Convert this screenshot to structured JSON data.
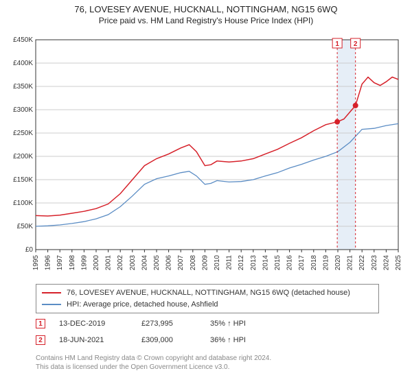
{
  "title": {
    "line1": "76, LOVESEY AVENUE, HUCKNALL, NOTTINGHAM, NG15 6WQ",
    "line2": "Price paid vs. HM Land Registry's House Price Index (HPI)"
  },
  "chart": {
    "type": "line",
    "background_color": "#ffffff",
    "plot_border_color": "#333333",
    "grid_color": "#cccccc",
    "x_years": [
      1995,
      1996,
      1997,
      1998,
      1999,
      2000,
      2001,
      2002,
      2003,
      2004,
      2005,
      2006,
      2007,
      2008,
      2009,
      2010,
      2011,
      2012,
      2013,
      2014,
      2015,
      2016,
      2017,
      2018,
      2019,
      2020,
      2021,
      2022,
      2023,
      2024,
      2025
    ],
    "y_ticks": [
      0,
      50000,
      100000,
      150000,
      200000,
      250000,
      300000,
      350000,
      400000,
      450000
    ],
    "y_tick_labels": [
      "£0",
      "£50K",
      "£100K",
      "£150K",
      "£200K",
      "£250K",
      "£300K",
      "£350K",
      "£400K",
      "£450K"
    ],
    "ylim": [
      0,
      450000
    ],
    "xlim": [
      1995,
      2025
    ],
    "series": [
      {
        "name": "76, LOVESEY AVENUE, HUCKNALL, NOTTINGHAM, NG15 6WQ (detached house)",
        "color": "#d62029",
        "line_width": 1.5,
        "data": [
          [
            1995,
            73000
          ],
          [
            1996,
            72000
          ],
          [
            1997,
            74000
          ],
          [
            1998,
            78000
          ],
          [
            1999,
            82000
          ],
          [
            2000,
            88000
          ],
          [
            2001,
            98000
          ],
          [
            2002,
            120000
          ],
          [
            2003,
            150000
          ],
          [
            2004,
            180000
          ],
          [
            2005,
            195000
          ],
          [
            2006,
            205000
          ],
          [
            2007,
            218000
          ],
          [
            2007.7,
            225000
          ],
          [
            2008.3,
            210000
          ],
          [
            2009,
            180000
          ],
          [
            2009.5,
            182000
          ],
          [
            2010,
            190000
          ],
          [
            2011,
            188000
          ],
          [
            2012,
            190000
          ],
          [
            2013,
            195000
          ],
          [
            2014,
            205000
          ],
          [
            2015,
            215000
          ],
          [
            2016,
            228000
          ],
          [
            2017,
            240000
          ],
          [
            2018,
            255000
          ],
          [
            2019,
            268000
          ],
          [
            2019.95,
            273995
          ],
          [
            2020.5,
            280000
          ],
          [
            2021.46,
            309000
          ],
          [
            2022,
            355000
          ],
          [
            2022.5,
            370000
          ],
          [
            2023,
            358000
          ],
          [
            2023.5,
            352000
          ],
          [
            2024,
            360000
          ],
          [
            2024.5,
            370000
          ],
          [
            2025,
            365000
          ]
        ]
      },
      {
        "name": "HPI: Average price, detached house, Ashfield",
        "color": "#5a8cc4",
        "line_width": 1.3,
        "data": [
          [
            1995,
            50000
          ],
          [
            1996,
            51000
          ],
          [
            1997,
            53000
          ],
          [
            1998,
            56000
          ],
          [
            1999,
            60000
          ],
          [
            2000,
            66000
          ],
          [
            2001,
            75000
          ],
          [
            2002,
            92000
          ],
          [
            2003,
            115000
          ],
          [
            2004,
            140000
          ],
          [
            2005,
            152000
          ],
          [
            2006,
            158000
          ],
          [
            2007,
            165000
          ],
          [
            2007.7,
            168000
          ],
          [
            2008.3,
            158000
          ],
          [
            2009,
            140000
          ],
          [
            2009.5,
            142000
          ],
          [
            2010,
            148000
          ],
          [
            2011,
            145000
          ],
          [
            2012,
            146000
          ],
          [
            2013,
            150000
          ],
          [
            2014,
            158000
          ],
          [
            2015,
            165000
          ],
          [
            2016,
            175000
          ],
          [
            2017,
            183000
          ],
          [
            2018,
            192000
          ],
          [
            2019,
            200000
          ],
          [
            2020,
            210000
          ],
          [
            2021,
            230000
          ],
          [
            2022,
            258000
          ],
          [
            2023,
            260000
          ],
          [
            2024,
            266000
          ],
          [
            2025,
            270000
          ]
        ]
      }
    ],
    "sale_markers": [
      {
        "idx": "1",
        "year_pos": 2019.95,
        "price": 273995,
        "marker_color": "#d62029",
        "box_border": "#d62029",
        "box_bg": "#ffffff",
        "text_color": "#d62029"
      },
      {
        "idx": "2",
        "year_pos": 2021.46,
        "price": 309000,
        "marker_color": "#d62029",
        "box_border": "#d62029",
        "box_bg": "#ffffff",
        "text_color": "#d62029"
      }
    ],
    "highlight_band": {
      "from_year": 2019.95,
      "to_year": 2021.46,
      "fill": "#dbe7f4",
      "opacity": 0.7
    }
  },
  "legend": {
    "rows": [
      {
        "color": "#d62029",
        "label": "76, LOVESEY AVENUE, HUCKNALL, NOTTINGHAM, NG15 6WQ (detached house)"
      },
      {
        "color": "#5a8cc4",
        "label": "HPI: Average price, detached house, Ashfield"
      }
    ]
  },
  "sales": [
    {
      "idx": "1",
      "date": "13-DEC-2019",
      "price": "£273,995",
      "pct": "35% ↑ HPI",
      "color": "#d62029"
    },
    {
      "idx": "2",
      "date": "18-JUN-2021",
      "price": "£309,000",
      "pct": "36% ↑ HPI",
      "color": "#d62029"
    }
  ],
  "footer": {
    "line1": "Contains HM Land Registry data © Crown copyright and database right 2024.",
    "line2": "This data is licensed under the Open Government Licence v3.0."
  }
}
